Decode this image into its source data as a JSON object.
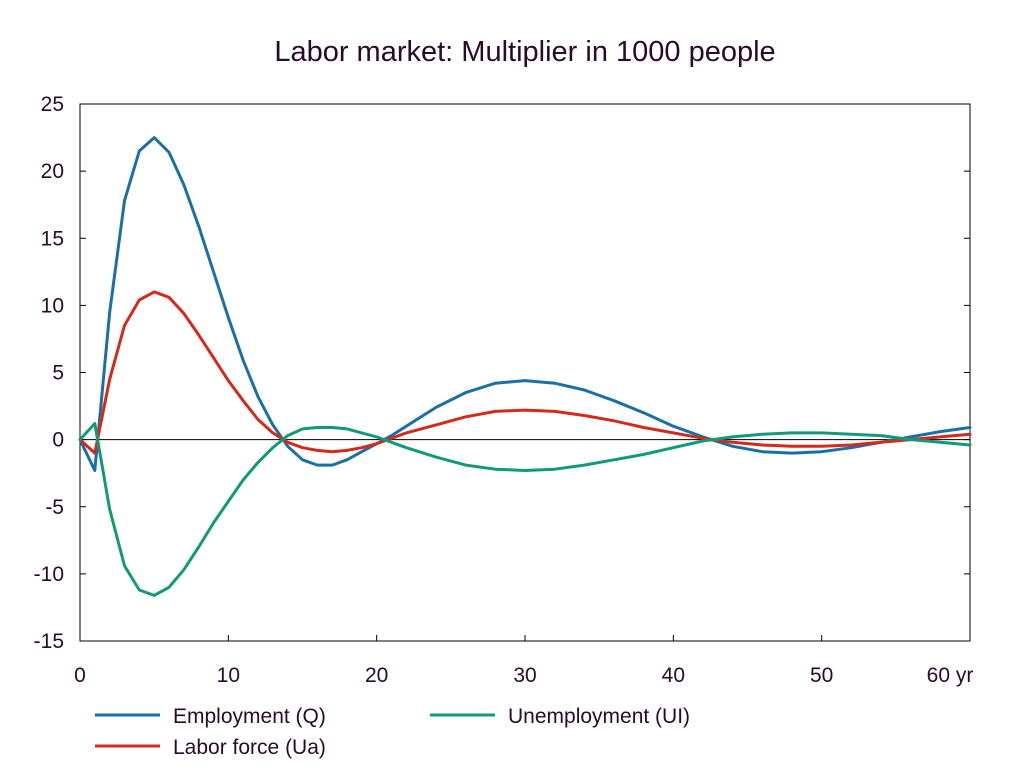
{
  "chart_data": {
    "type": "line",
    "title": "Labor market: Multiplier in 1000 people",
    "xlabel": "",
    "ylabel": "",
    "xlim": [
      0,
      60
    ],
    "ylim": [
      -15,
      25
    ],
    "x_ticks": [
      "0",
      "10",
      "20",
      "30",
      "40",
      "50",
      "60 yr"
    ],
    "y_ticks": [
      "25",
      "20",
      "15",
      "10",
      "5",
      "0",
      "-5",
      "-10",
      "-15"
    ],
    "grid": false,
    "zero_line": true,
    "legend_position": "bottom",
    "x": [
      0,
      1,
      2,
      3,
      4,
      5,
      6,
      7,
      8,
      9,
      10,
      11,
      12,
      13,
      14,
      15,
      16,
      17,
      18,
      19,
      20,
      21,
      22,
      24,
      26,
      28,
      30,
      32,
      34,
      36,
      38,
      40,
      42,
      44,
      46,
      48,
      50,
      52,
      54,
      56,
      58,
      60
    ],
    "series": [
      {
        "name": "Employment (Q)",
        "color": "#1a6fa6",
        "values": [
          0,
          -2.3,
          9.5,
          17.8,
          21.5,
          22.5,
          21.4,
          19,
          15.9,
          12.5,
          9.1,
          5.9,
          3.2,
          1.1,
          -0.5,
          -1.5,
          -1.9,
          -1.9,
          -1.5,
          -0.9,
          -0.3,
          0.3,
          1.0,
          2.4,
          3.5,
          4.2,
          4.4,
          4.2,
          3.7,
          2.9,
          2.0,
          1.0,
          0.2,
          -0.5,
          -0.9,
          -1.0,
          -0.9,
          -0.6,
          -0.2,
          0.2,
          0.6,
          0.9
        ]
      },
      {
        "name": "Labor force (Ua)",
        "color": "#d42a1c",
        "values": [
          0,
          -1.0,
          4.5,
          8.5,
          10.4,
          11.0,
          10.6,
          9.4,
          7.8,
          6.1,
          4.4,
          2.9,
          1.5,
          0.5,
          -0.2,
          -0.6,
          -0.8,
          -0.9,
          -0.8,
          -0.6,
          -0.3,
          0.1,
          0.5,
          1.1,
          1.7,
          2.1,
          2.2,
          2.1,
          1.8,
          1.4,
          0.9,
          0.5,
          0.1,
          -0.2,
          -0.4,
          -0.5,
          -0.5,
          -0.4,
          -0.2,
          0.0,
          0.2,
          0.4
        ]
      },
      {
        "name": "Unemployment (UI)",
        "color": "#129a78",
        "values": [
          0,
          1.2,
          -5.2,
          -9.4,
          -11.2,
          -11.6,
          -11.0,
          -9.7,
          -8.0,
          -6.2,
          -4.6,
          -3.0,
          -1.7,
          -0.6,
          0.3,
          0.8,
          0.9,
          0.9,
          0.8,
          0.5,
          0.2,
          -0.2,
          -0.6,
          -1.3,
          -1.9,
          -2.2,
          -2.3,
          -2.2,
          -1.9,
          -1.5,
          -1.1,
          -0.6,
          -0.1,
          0.2,
          0.4,
          0.5,
          0.5,
          0.4,
          0.3,
          0.0,
          -0.2,
          -0.4
        ]
      }
    ]
  }
}
